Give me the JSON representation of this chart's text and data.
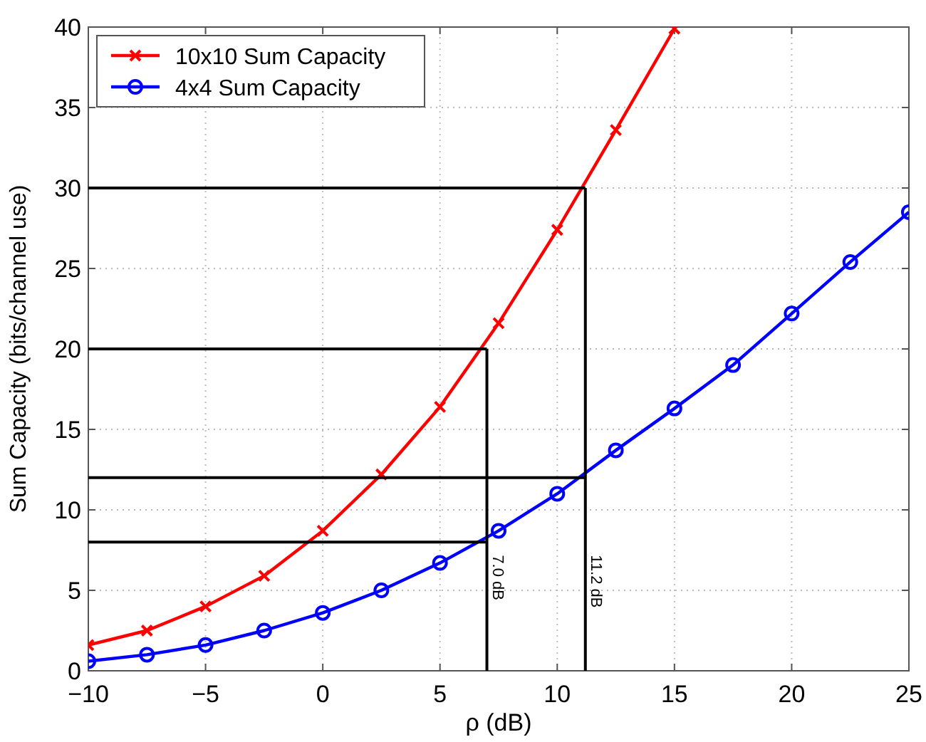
{
  "chart_data": {
    "type": "line",
    "xlabel": "ρ (dB)",
    "ylabel": "Sum Capacity (bits/channel use)",
    "xlim": [
      -10,
      25
    ],
    "ylim": [
      0,
      40
    ],
    "xticks": [
      -10,
      -5,
      0,
      5,
      10,
      15,
      20,
      25
    ],
    "yticks": [
      0,
      5,
      10,
      15,
      20,
      25,
      30,
      35,
      40
    ],
    "grid": true,
    "legend": "top left",
    "line_style": "solid",
    "series": [
      {
        "name": "10x10 Sum Capacity",
        "color": "#ff0000",
        "marker": "cross",
        "x": [
          -10,
          -7.5,
          -5,
          -2.5,
          0,
          2.5,
          5,
          7.5,
          10,
          12.5,
          15
        ],
        "values": [
          1.6,
          2.5,
          4.0,
          5.9,
          8.7,
          12.2,
          16.4,
          21.6,
          27.4,
          33.6,
          39.9
        ]
      },
      {
        "name": "4x4 Sum Capacity",
        "color": "#0000ff",
        "marker": "circle",
        "x": [
          -10,
          -7.5,
          -5,
          -2.5,
          0,
          2.5,
          5,
          7.5,
          10,
          12.5,
          15,
          17.5,
          20,
          22.5,
          25
        ],
        "values": [
          0.6,
          1.0,
          1.6,
          2.5,
          3.6,
          5.0,
          6.7,
          8.7,
          11.0,
          13.7,
          16.3,
          19.0,
          22.2,
          25.4,
          28.5
        ]
      }
    ],
    "ref_lines": [
      {
        "axis": "y",
        "value": 30,
        "color": "#000000"
      },
      {
        "axis": "y",
        "value": 20,
        "color": "#000000"
      },
      {
        "axis": "y",
        "value": 12,
        "color": "#000000"
      },
      {
        "axis": "y",
        "value": 8,
        "color": "#000000"
      },
      {
        "axis": "x",
        "value": 7.0,
        "label": "7.0 dB",
        "color": "#000000"
      },
      {
        "axis": "x",
        "value": 11.2,
        "label": "11.2 dB",
        "color": "#000000"
      }
    ]
  }
}
